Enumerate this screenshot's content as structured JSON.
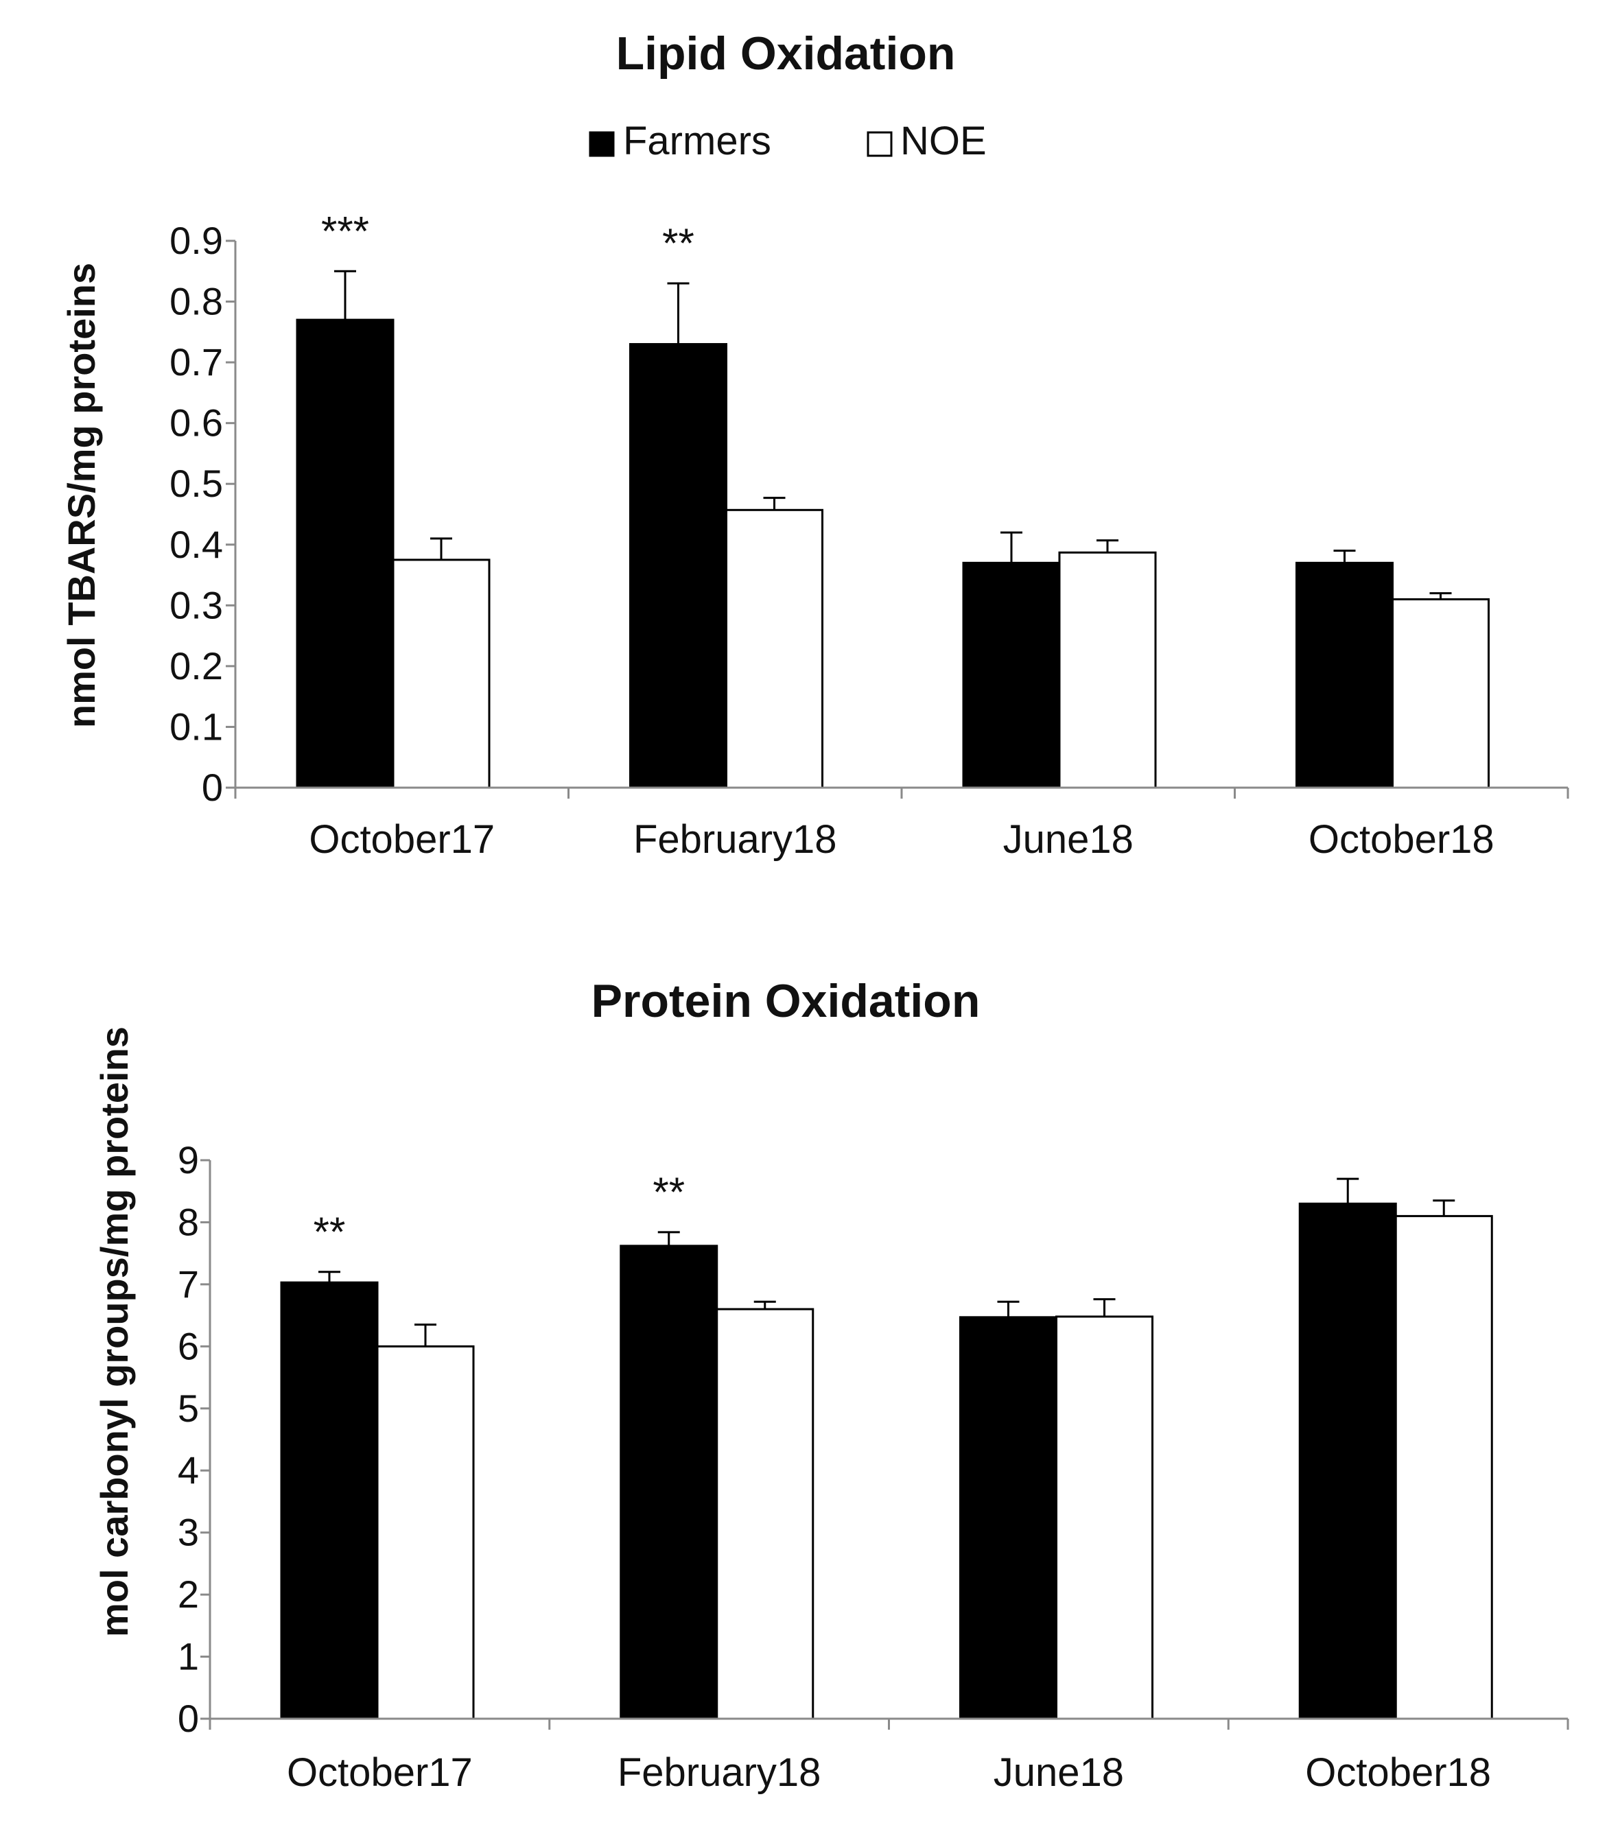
{
  "legend": {
    "items": [
      {
        "label": "Farmers",
        "color": "#000000"
      },
      {
        "label": "NOE",
        "color": "#ffffff"
      }
    ]
  },
  "chart_data": [
    {
      "type": "bar",
      "title": "Lipid Oxidation",
      "xlabel": "",
      "ylabel": "nmol TBARS/mg proteins",
      "ylim": [
        0,
        0.9
      ],
      "yticks": [
        "0",
        "0.1",
        "0.2",
        "0.3",
        "0.4",
        "0.5",
        "0.6",
        "0.7",
        "0.8",
        "0.9"
      ],
      "categories": [
        "October17",
        "February18",
        "June18",
        "October18"
      ],
      "series": [
        {
          "name": "Farmers",
          "color": "#000000",
          "values": [
            0.77,
            0.73,
            0.37,
            0.37
          ],
          "errors": [
            0.08,
            0.1,
            0.05,
            0.02
          ]
        },
        {
          "name": "NOE",
          "color": "#ffffff",
          "values": [
            0.375,
            0.457,
            0.387,
            0.31
          ],
          "errors": [
            0.035,
            0.02,
            0.02,
            0.01
          ]
        }
      ],
      "annotations": [
        "***",
        "**",
        "",
        ""
      ],
      "grid": false,
      "legend": "top-center"
    },
    {
      "type": "bar",
      "title": "Protein Oxidation",
      "xlabel": "",
      "ylabel": "mol carbonyl groups/mg proteins",
      "ylim": [
        0,
        9
      ],
      "yticks": [
        "0",
        "1",
        "2",
        "3",
        "4",
        "5",
        "6",
        "7",
        "8",
        "9"
      ],
      "categories": [
        "October17",
        "February18",
        "June18",
        "October18"
      ],
      "series": [
        {
          "name": "Farmers",
          "color": "#000000",
          "values": [
            7.03,
            7.62,
            6.47,
            8.3
          ],
          "errors": [
            0.17,
            0.22,
            0.25,
            0.4
          ]
        },
        {
          "name": "NOE",
          "color": "#ffffff",
          "values": [
            6.0,
            6.6,
            6.48,
            8.1
          ],
          "errors": [
            0.35,
            0.12,
            0.28,
            0.25
          ]
        }
      ],
      "annotations": [
        "**",
        "**",
        "",
        ""
      ],
      "grid": false,
      "legend": "none"
    }
  ]
}
